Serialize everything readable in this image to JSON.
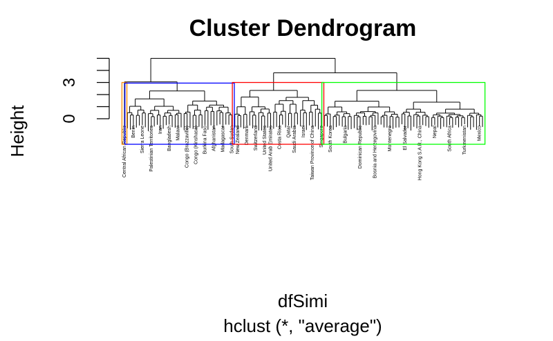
{
  "chart_data": {
    "type": "dendrogram",
    "title": "Cluster Dendrogram",
    "ylabel": "Height",
    "xlabel": "dfSimi",
    "sub": "hclust (*, \"average\")",
    "ylim": [
      0,
      5.5
    ],
    "yticks": [
      0,
      1,
      2,
      3,
      4,
      5
    ],
    "ytick_labels": [
      "0",
      "3"
    ],
    "root_height": 5.0,
    "clusters": [
      {
        "color": "#ff8c00",
        "merge_height": 3.0,
        "leaf_count": 1,
        "labels": [
          "Central African Republic"
        ]
      },
      {
        "color": "#0000ff",
        "merge_height": 2.95,
        "leaf_count": 36,
        "labels": [
          "Benin",
          "Sierra Leone",
          "Palestinian Territories",
          "Iran",
          "Bangladesh",
          "Malawi",
          "Congo (Brazzaville)",
          "Congo (Kinshasa)",
          "Burkina Faso",
          "Afghanistan",
          "Madagascar",
          "South Sudan"
        ]
      },
      {
        "color": "#ff0000",
        "merge_height": 3.0,
        "leaf_count": 30,
        "labels": [
          "New Zealand",
          "Denmark",
          "Switzerland",
          "United States",
          "United Arab Emirates",
          "Costa Rica",
          "Qatar",
          "Saudi Arabia",
          "Israel",
          "Taiwan Province of China",
          "Singapore"
        ]
      },
      {
        "color": "#00ff00",
        "merge_height": 3.0,
        "leaf_count": 54,
        "labels": [
          "South Korea",
          "Bulgaria",
          "Dominican Republic",
          "Bosnia and Herzegovina",
          "Montenegro",
          "El Salvador",
          "Hong Kong S.A.R., China",
          "Nepal",
          "South Africa",
          "Turkmenistan",
          "Mexico"
        ]
      }
    ],
    "upper_merges": [
      {
        "height": 3.8,
        "joins": [
          "red",
          "green"
        ]
      },
      {
        "height": 3.05,
        "joins": [
          "orange",
          "blue"
        ]
      },
      {
        "height": 5.0,
        "joins": [
          "orange+blue",
          "red+green"
        ]
      }
    ]
  }
}
